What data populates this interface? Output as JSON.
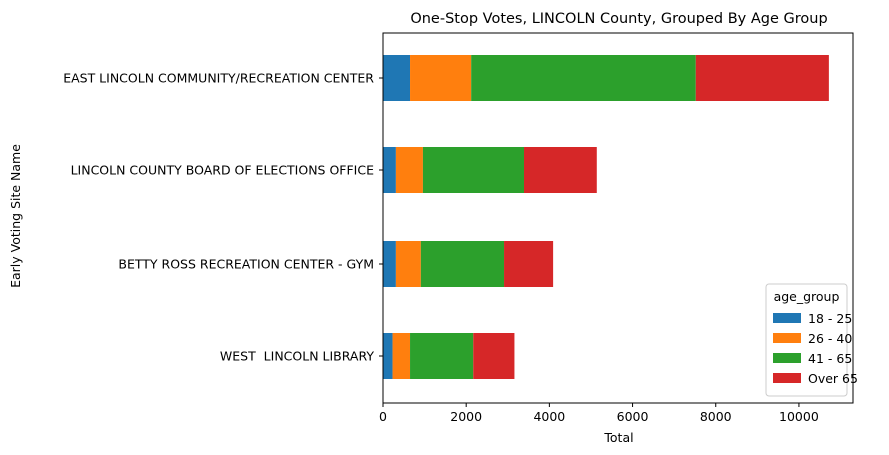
{
  "chart_data": {
    "type": "bar",
    "orientation": "horizontal",
    "stacked": true,
    "title": "One-Stop Votes, LINCOLN County, Grouped By Age Group",
    "xlabel": "Total",
    "ylabel": "Early Voting Site Name",
    "xlim": [
      0,
      11300
    ],
    "xticks": [
      "0",
      "2000",
      "4000",
      "6000",
      "8000",
      "10000"
    ],
    "grid": false,
    "categories": [
      "WEST  LINCOLN LIBRARY",
      "BETTY ROSS RECREATION CENTER - GYM",
      "LINCOLN COUNTY BOARD OF ELECTIONS OFFICE",
      "EAST LINCOLN COMMUNITY/RECREATION CENTER"
    ],
    "series": [
      {
        "name": "18 - 25",
        "color": "#1f77b4",
        "values": [
          230,
          310,
          310,
          650
        ]
      },
      {
        "name": "26 - 40",
        "color": "#ff7f0e",
        "values": [
          420,
          600,
          650,
          1470
        ]
      },
      {
        "name": "41 - 65",
        "color": "#2ca02c",
        "values": [
          1520,
          2000,
          2430,
          5400
        ]
      },
      {
        "name": "Over 65",
        "color": "#d62728",
        "values": [
          990,
          1180,
          1750,
          3200
        ]
      }
    ],
    "legend": {
      "title": "age_group",
      "placement": "lower-right"
    }
  }
}
